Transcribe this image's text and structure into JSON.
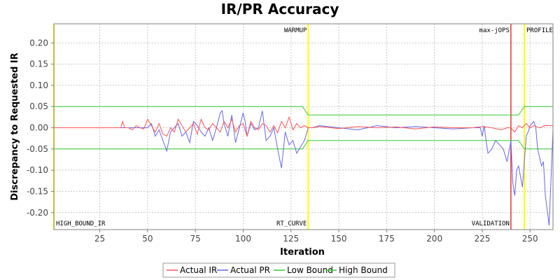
{
  "chart_data": {
    "type": "line",
    "title": "IR/PR Accuracy",
    "xlabel": "Iteration",
    "ylabel": "Discrepancy to Requested IR",
    "xlim": [
      1,
      262
    ],
    "ylim": [
      -0.24,
      0.245
    ],
    "x_ticks": [
      25,
      50,
      75,
      100,
      125,
      150,
      175,
      200,
      225,
      250
    ],
    "y_ticks": [
      0.2,
      0.15,
      0.1,
      0.05,
      0.0,
      -0.05,
      -0.1,
      -0.15,
      -0.2
    ],
    "y_tick_labels": [
      "0.20",
      "0.15",
      "0.10",
      "0.05",
      "0.00",
      "-0.05",
      "-0.10",
      "-0.15",
      "-0.20"
    ],
    "grid": true,
    "legend_position": "bottom",
    "markers": [
      {
        "x": 1,
        "label": "HIGH_BOUND_IR",
        "label_pos": "bottom",
        "color": "#ffff00"
      },
      {
        "x": 134,
        "label": "WARMUP",
        "label_pos": "top",
        "color": "#ffff00"
      },
      {
        "x": 134,
        "label": "RT_CURVE",
        "label_pos": "bottom",
        "color": "#ffff00"
      },
      {
        "x": 240,
        "label": "max-jOPS",
        "label_pos": "top",
        "color": "#dd0000"
      },
      {
        "x": 240,
        "label": "VALIDATION",
        "label_pos": "bottom",
        "color": "#dd0000"
      },
      {
        "x": 247,
        "label": "PROFILE",
        "label_pos": "top",
        "color": "#ffff00"
      }
    ],
    "series": [
      {
        "name": "Actual IR",
        "color": "#ff5555",
        "x": [
          1,
          36,
          37,
          38,
          40,
          42,
          44,
          46,
          48,
          50,
          52,
          54,
          56,
          58,
          60,
          62,
          64,
          66,
          68,
          70,
          72,
          74,
          76,
          78,
          80,
          82,
          84,
          86,
          88,
          90,
          92,
          94,
          96,
          98,
          100,
          102,
          104,
          106,
          108,
          110,
          112,
          114,
          116,
          118,
          120,
          122,
          124,
          126,
          128,
          130,
          132,
          134,
          136,
          140,
          150,
          160,
          170,
          180,
          190,
          200,
          210,
          220,
          225,
          230,
          235,
          238,
          240,
          242,
          244,
          246,
          248,
          250,
          252,
          255,
          258,
          262
        ],
        "y": [
          0.0,
          0.0,
          0.015,
          0.0,
          0.0,
          -0.005,
          0.005,
          0.0,
          -0.003,
          0.02,
          0.005,
          -0.01,
          0.01,
          -0.015,
          -0.02,
          0.0,
          -0.01,
          0.02,
          0.005,
          -0.01,
          0.0,
          0.01,
          -0.015,
          0.02,
          0.0,
          -0.005,
          0.01,
          0.0,
          -0.01,
          0.015,
          0.0,
          0.02,
          -0.01,
          0.005,
          0.01,
          -0.02,
          0.015,
          0.0,
          -0.005,
          0.01,
          0.005,
          -0.01,
          0.005,
          -0.012,
          0.015,
          0.0,
          0.025,
          -0.005,
          0.01,
          0.0,
          0.005,
          0.0,
          0.0,
          0.003,
          -0.002,
          0.003,
          0.0,
          0.002,
          -0.003,
          0.002,
          0.0,
          0.0,
          0.003,
          0.0,
          -0.005,
          0.0,
          0.0,
          -0.01,
          0.005,
          0.0,
          0.01,
          0.0,
          0.005,
          0.0,
          0.005,
          0.005
        ]
      },
      {
        "name": "Actual PR",
        "color": "#6666ee",
        "x": [
          1,
          50,
          52,
          54,
          56,
          58,
          60,
          62,
          64,
          66,
          68,
          70,
          72,
          74,
          76,
          78,
          80,
          82,
          84,
          86,
          88,
          89,
          90,
          92,
          94,
          96,
          98,
          100,
          101,
          102,
          104,
          106,
          108,
          110,
          111,
          112,
          114,
          116,
          118,
          120,
          122,
          124,
          126,
          128,
          130,
          132,
          134,
          136,
          140,
          150,
          160,
          170,
          180,
          190,
          200,
          210,
          220,
          224,
          225,
          226,
          227,
          228,
          230,
          232,
          234,
          236,
          238,
          240,
          241,
          242,
          243,
          244,
          246,
          248,
          249,
          250,
          252,
          253,
          254,
          256,
          257,
          258,
          260,
          262
        ],
        "y": [
          0.0,
          0.0,
          0.01,
          -0.02,
          -0.005,
          -0.03,
          -0.055,
          -0.01,
          0.0,
          0.01,
          -0.02,
          -0.01,
          -0.035,
          0.015,
          0.005,
          -0.01,
          -0.02,
          0.0,
          -0.03,
          0.0,
          0.035,
          0.04,
          0.01,
          -0.02,
          0.03,
          -0.035,
          0.0,
          0.035,
          0.015,
          -0.02,
          0.01,
          -0.005,
          0.0,
          0.04,
          0.005,
          -0.03,
          -0.02,
          0.0,
          -0.05,
          -0.095,
          -0.01,
          -0.04,
          -0.03,
          -0.06,
          -0.045,
          -0.03,
          0.0,
          0.0,
          0.005,
          0.0,
          -0.005,
          0.005,
          0.0,
          0.003,
          0.0,
          -0.003,
          0.0,
          0.0,
          -0.02,
          0.005,
          -0.03,
          -0.06,
          -0.05,
          -0.03,
          -0.04,
          -0.05,
          -0.08,
          -0.03,
          -0.13,
          -0.16,
          -0.1,
          -0.09,
          -0.14,
          -0.02,
          -0.01,
          0.005,
          0.015,
          0.0,
          -0.05,
          -0.09,
          -0.08,
          -0.16,
          -0.23,
          -0.005
        ]
      },
      {
        "name": "Low Bound",
        "color": "#33cc33",
        "x": [
          1,
          131,
          134,
          244,
          247,
          262
        ],
        "y": [
          -0.05,
          -0.05,
          -0.03,
          -0.03,
          -0.05,
          -0.05
        ]
      },
      {
        "name": "High Bound",
        "color": "#33cc33",
        "x": [
          1,
          131,
          134,
          244,
          247,
          262
        ],
        "y": [
          0.05,
          0.05,
          0.03,
          0.03,
          0.05,
          0.05
        ]
      }
    ]
  }
}
